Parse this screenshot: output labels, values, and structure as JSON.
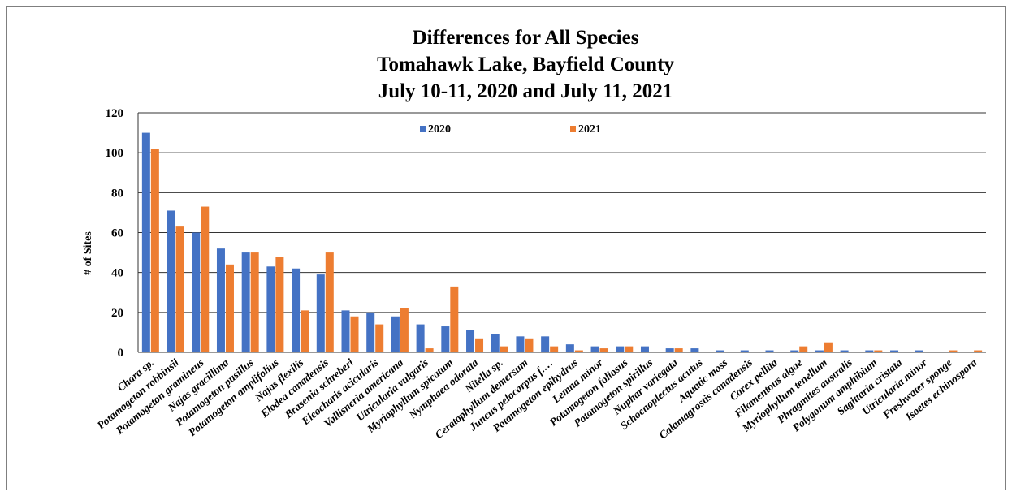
{
  "chart_data": {
    "type": "bar",
    "title_lines": [
      "Differences  for All Species",
      "Tomahawk  Lake, Bayfield County",
      "July 10-11, 2020 and July 11, 2021"
    ],
    "xlabel": "",
    "ylabel": "# of Sites",
    "ylim": [
      0,
      120
    ],
    "yticks": [
      0,
      20,
      40,
      60,
      80,
      100,
      120
    ],
    "grid": true,
    "legend_position": "top-center",
    "categories": [
      "Chara sp.",
      "Potamogeton robbinsii",
      "Potamogeton gramineus",
      "Najas gracillima",
      "Potamogeton pusillus",
      "Potamogeton amplifolius",
      "Najas flexilis",
      "Elodea canadensis",
      "Brasenia schreberi",
      "Eleocharis acicularis",
      "Vallisneria americana",
      "Utricularia vulgaris",
      "Myriophyllum spicatum",
      "Nymphaea odorata",
      "Nitella sp.",
      "Ceratophyllum demersum",
      "Juncus pelocarpus f.…",
      "Potamogeton epihydrus",
      "Lemna minor",
      "Potamogeton foliosus",
      "Potamogeton spirillus",
      "Nuphar variegata",
      "Schoenoplectus acutus",
      "Aquatic moss",
      "Calamagrostis canadensis",
      "Carex pellita",
      "Filamentous algae",
      "Myriophyllum tenellum",
      "Phragmites australis",
      "Polygonum amphibium",
      "Sagittaria cristata",
      "Utricularia minor",
      "Freshwater sponge",
      "Isoetes echinospora"
    ],
    "series": [
      {
        "name": "2020",
        "color": "#4472c4",
        "values": [
          110,
          71,
          60,
          52,
          50,
          43,
          42,
          39,
          21,
          20,
          18,
          14,
          13,
          11,
          9,
          8,
          8,
          4,
          3,
          3,
          3,
          2,
          2,
          1,
          1,
          1,
          1,
          1,
          1,
          1,
          1,
          1,
          0,
          0
        ]
      },
      {
        "name": "2021",
        "color": "#ed7d31",
        "values": [
          102,
          63,
          73,
          44,
          50,
          48,
          21,
          50,
          18,
          14,
          22,
          2,
          33,
          7,
          3,
          7,
          3,
          1,
          2,
          3,
          0,
          2,
          0,
          0,
          0,
          0,
          3,
          5,
          0,
          1,
          0,
          0,
          1,
          1
        ]
      }
    ]
  }
}
